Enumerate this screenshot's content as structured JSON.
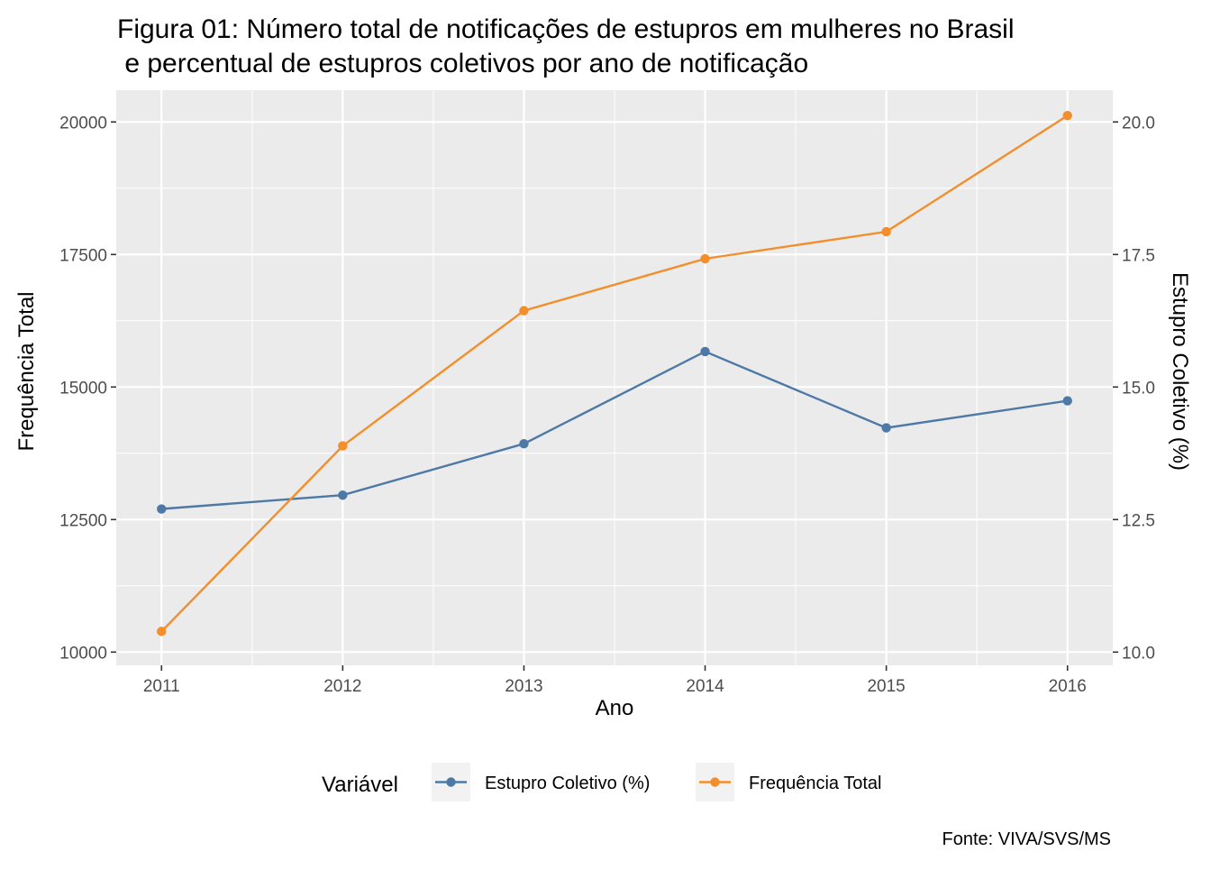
{
  "chart_data": {
    "type": "line",
    "title_line1": "Figura 01: Número total de notificações de estupros em mulheres no Brasil",
    "title_line2": " e percentual de estupros coletivos por ano de notificação",
    "xlabel": "Ano",
    "ylabel_left": "Frequência Total",
    "ylabel_right": "Estupro Coletivo (%)",
    "x": [
      2011,
      2012,
      2013,
      2014,
      2015,
      2016
    ],
    "x_tick_labels": [
      "2011",
      "2012",
      "2013",
      "2014",
      "2015",
      "2016"
    ],
    "y_left_ticks": [
      "10000",
      "12500",
      "15000",
      "17500",
      "20000"
    ],
    "y_right_ticks": [
      "10.0",
      "12.5",
      "15.0",
      "17.5",
      "20.0"
    ],
    "ylim_left": [
      9750,
      20600
    ],
    "ylim_right": [
      9.75,
      20.6
    ],
    "grid": true,
    "legend": {
      "title": "Variável",
      "position": "bottom"
    },
    "series": [
      {
        "name": "Estupro Coletivo (%)",
        "axis": "right",
        "color": "#4e79a7",
        "values": [
          12.7,
          12.96,
          13.93,
          15.67,
          14.23,
          14.74
        ]
      },
      {
        "name": "Frequência Total",
        "axis": "left",
        "color": "#f28e2b",
        "values": [
          10390,
          13890,
          16440,
          17420,
          17930,
          20120
        ]
      }
    ],
    "caption": "Fonte: VIVA/SVS/MS"
  }
}
